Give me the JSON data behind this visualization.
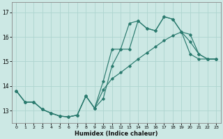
{
  "xlabel": "Humidex (Indice chaleur)",
  "xlim": [
    -0.5,
    23.5
  ],
  "ylim": [
    12.5,
    17.4
  ],
  "xticks": [
    0,
    1,
    2,
    3,
    4,
    5,
    6,
    7,
    8,
    9,
    10,
    11,
    12,
    13,
    14,
    15,
    16,
    17,
    18,
    19,
    20,
    21,
    22,
    23
  ],
  "yticks": [
    13,
    14,
    15,
    16,
    17
  ],
  "bg_color": "#cce8e4",
  "grid_color": "#aed4cf",
  "line_color": "#2a7a6e",
  "line1_x": [
    0,
    1,
    2,
    3,
    4,
    5,
    6,
    7,
    8,
    9,
    10,
    11,
    12,
    13,
    14,
    15,
    16,
    17,
    18,
    19,
    20,
    21,
    22,
    23
  ],
  "line1_y": [
    13.8,
    13.35,
    13.35,
    13.05,
    12.9,
    12.78,
    12.75,
    12.82,
    13.6,
    13.1,
    13.5,
    14.82,
    15.5,
    15.5,
    16.65,
    16.35,
    16.25,
    16.82,
    16.72,
    16.2,
    15.8,
    15.3,
    15.1,
    15.1
  ],
  "line2_x": [
    0,
    1,
    2,
    3,
    4,
    5,
    6,
    7,
    8,
    9,
    10,
    11,
    12,
    13,
    14,
    15,
    16,
    17,
    18,
    19,
    20,
    21,
    22,
    23
  ],
  "line2_y": [
    13.8,
    13.35,
    13.35,
    13.05,
    12.9,
    12.78,
    12.75,
    12.82,
    13.6,
    13.1,
    14.2,
    15.5,
    15.5,
    16.55,
    16.65,
    16.35,
    16.25,
    16.82,
    16.72,
    16.2,
    15.3,
    15.1,
    15.1,
    15.1
  ],
  "line3_x": [
    0,
    1,
    2,
    3,
    4,
    5,
    6,
    7,
    8,
    9,
    10,
    11,
    12,
    13,
    14,
    15,
    16,
    17,
    18,
    19,
    20,
    21,
    22,
    23
  ],
  "line3_y": [
    13.8,
    13.35,
    13.35,
    13.05,
    12.9,
    12.78,
    12.75,
    12.82,
    13.6,
    13.1,
    13.85,
    14.3,
    14.55,
    14.82,
    15.1,
    15.35,
    15.6,
    15.85,
    16.05,
    16.2,
    16.1,
    15.3,
    15.1,
    15.1
  ]
}
